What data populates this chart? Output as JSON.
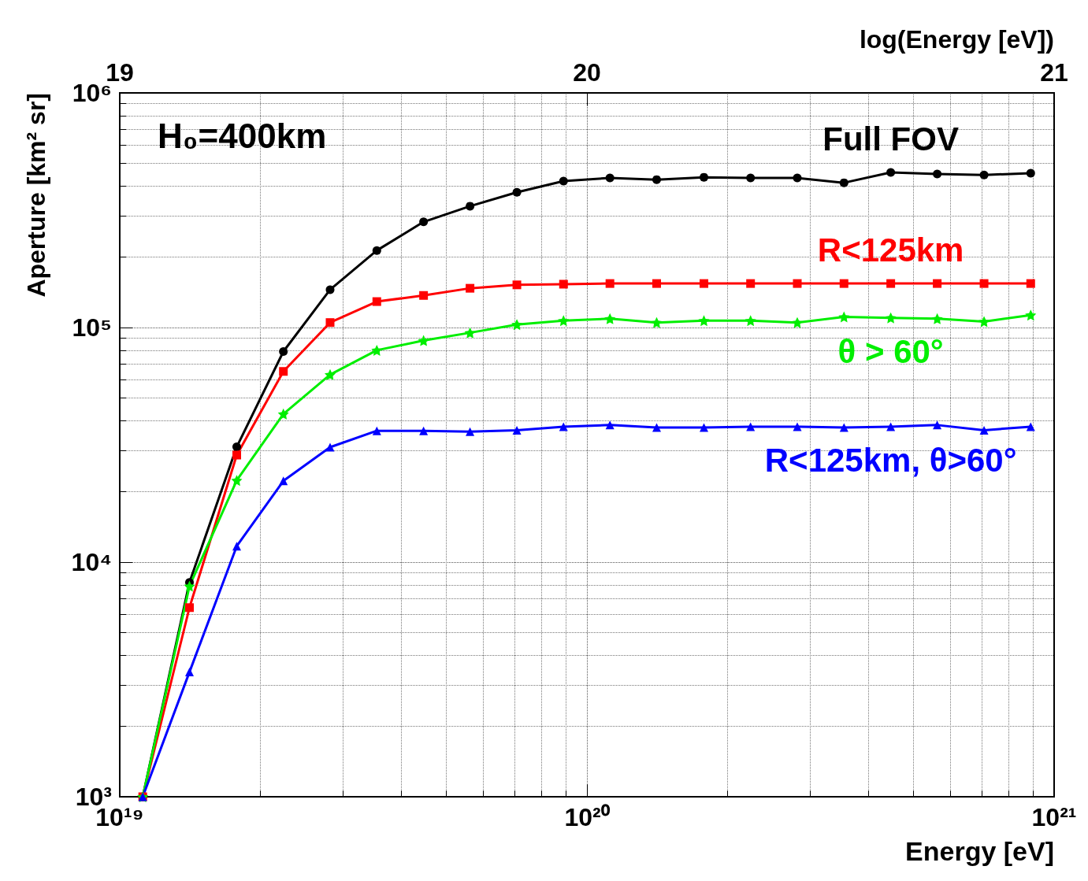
{
  "chart_data": {
    "type": "line",
    "xlabel": "Energy [eV]",
    "ylabel": "Aperture [km² sr]",
    "x2label": "log(Energy [eV])",
    "log": "xy",
    "grid": true,
    "legend": false,
    "line_style": "solid",
    "xlim": [
      1e+19,
      1e+21
    ],
    "xticks": [
      {
        "value": 1e+19,
        "label": "10¹⁹"
      },
      {
        "value": 1e+20,
        "label": "10²⁰"
      },
      {
        "value": 1e+21,
        "label": "10²¹"
      }
    ],
    "ylim": [
      1000,
      1000000
    ],
    "yticks": [
      {
        "value": 1000,
        "label": "10³"
      },
      {
        "value": 10000,
        "label": "10⁴"
      },
      {
        "value": 100000,
        "label": "10⁵"
      },
      {
        "value": 1000000,
        "label": "10⁶"
      }
    ],
    "x2lim": [
      19,
      21
    ],
    "x2ticks": [
      19,
      20,
      21
    ],
    "annotations": [
      "H₀=400km"
    ],
    "x": [
      1.12e+19,
      1.41e+19,
      1.78e+19,
      2.24e+19,
      2.82e+19,
      3.55e+19,
      4.47e+19,
      5.62e+19,
      7.08e+19,
      8.91e+19,
      1.12e+20,
      1.41e+20,
      1.78e+20,
      2.24e+20,
      2.82e+20,
      3.55e+20,
      4.47e+20,
      5.62e+20,
      7.08e+20,
      8.91e+20
    ],
    "series": [
      {
        "name": "Full FOV",
        "color": "#000000",
        "marker": "circle",
        "values": [
          1000,
          8200,
          31000,
          79000,
          145000,
          213000,
          282000,
          329000,
          377000,
          421000,
          434000,
          427000,
          437000,
          434000,
          434000,
          414000,
          458000,
          451000,
          447000,
          455000
        ]
      },
      {
        "name": "R<125km",
        "color": "#ff0000",
        "marker": "square",
        "values": [
          1000,
          6400,
          28600,
          65000,
          105000,
          129000,
          137000,
          147000,
          152000,
          153000,
          154000,
          154000,
          154000,
          154000,
          154000,
          154000,
          154000,
          154000,
          154000,
          154000
        ]
      },
      {
        "name": "θ > 60°",
        "color": "#00ee00",
        "marker": "star",
        "values": [
          1000,
          7900,
          22300,
          42800,
          63000,
          80000,
          88000,
          95000,
          103000,
          107000,
          109000,
          105000,
          107000,
          107000,
          105000,
          111000,
          110000,
          109000,
          106000,
          113000
        ]
      },
      {
        "name": "R<125km, θ>60°",
        "color": "#0000ff",
        "marker": "triangle",
        "values": [
          1000,
          3400,
          11700,
          22200,
          30900,
          36300,
          36300,
          36000,
          36500,
          37800,
          38400,
          37500,
          37500,
          37800,
          37800,
          37500,
          37800,
          38400,
          36500,
          37800
        ]
      }
    ]
  }
}
